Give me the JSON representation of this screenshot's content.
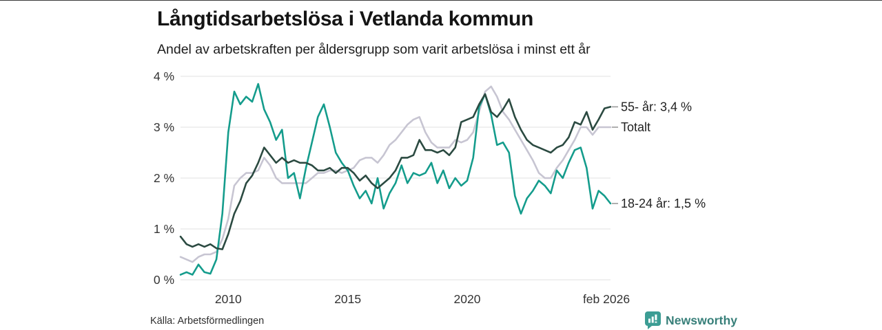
{
  "chart_data": {
    "type": "line",
    "title": "Långtidsarbetslösa i Vetlanda kommun",
    "subtitle": "Andel av arbetskraften per åldersgrupp som varit arbetslösa i minst ett år",
    "xlabel": "",
    "ylabel": "",
    "grid": "horizontal",
    "legend_position": "right-end-labels",
    "x_start_year": 2008.0,
    "x_end_year": 2026.0,
    "x_step_years": 0.25,
    "ylim": [
      0,
      4
    ],
    "y_ticks": [
      {
        "label": "0 %",
        "value": 0
      },
      {
        "label": "1 %",
        "value": 1
      },
      {
        "label": "2 %",
        "value": 2
      },
      {
        "label": "3 %",
        "value": 3
      },
      {
        "label": "4 %",
        "value": 4
      }
    ],
    "x_ticks": [
      {
        "label": "2010",
        "year": 2010
      },
      {
        "label": "2015",
        "year": 2015
      },
      {
        "label": "2020",
        "year": 2020
      },
      {
        "label": "feb 2026",
        "year": 2026.08
      }
    ],
    "series": [
      {
        "name": "Totalt",
        "end_label": "Totalt",
        "end_value": 3.0,
        "color": "#c7c5d2",
        "values": [
          0.45,
          0.4,
          0.35,
          0.45,
          0.5,
          0.5,
          0.55,
          0.8,
          1.2,
          1.85,
          2.0,
          2.1,
          2.1,
          2.15,
          2.4,
          2.25,
          2.0,
          1.9,
          1.9,
          1.9,
          1.9,
          1.9,
          2.0,
          2.1,
          2.1,
          2.15,
          2.15,
          2.1,
          2.15,
          2.2,
          2.35,
          2.4,
          2.4,
          2.3,
          2.45,
          2.65,
          2.75,
          2.9,
          3.05,
          3.15,
          3.2,
          2.9,
          2.7,
          2.6,
          2.6,
          2.6,
          2.75,
          2.7,
          2.75,
          2.9,
          3.3,
          3.7,
          3.8,
          3.6,
          3.3,
          3.15,
          2.95,
          2.75,
          2.55,
          2.35,
          2.1,
          2.0,
          2.0,
          2.2,
          2.35,
          2.55,
          2.75,
          3.0,
          3.0,
          2.85,
          3.0,
          3.0,
          3.0
        ]
      },
      {
        "name": "18-24 år",
        "end_label": "18-24 år: 1,5 %",
        "end_value": 1.5,
        "color": "#149c8c",
        "values": [
          0.1,
          0.15,
          0.1,
          0.3,
          0.15,
          0.12,
          0.4,
          1.3,
          2.9,
          3.7,
          3.45,
          3.6,
          3.5,
          3.85,
          3.35,
          3.1,
          2.75,
          2.95,
          2.0,
          2.1,
          1.6,
          2.2,
          2.7,
          3.2,
          3.45,
          3.0,
          2.5,
          2.3,
          2.15,
          1.85,
          1.6,
          1.75,
          1.5,
          2.0,
          1.4,
          1.7,
          1.9,
          2.25,
          1.9,
          2.1,
          2.05,
          2.1,
          2.3,
          1.9,
          2.15,
          1.8,
          2.0,
          1.85,
          1.95,
          2.4,
          3.4,
          3.65,
          3.25,
          2.65,
          2.7,
          2.5,
          1.65,
          1.3,
          1.6,
          1.75,
          1.95,
          1.85,
          1.7,
          2.15,
          2.0,
          2.3,
          2.55,
          2.6,
          2.2,
          1.4,
          1.75,
          1.65,
          1.5
        ]
      },
      {
        "name": "55- år",
        "end_label": "55- år: 3,4 %",
        "end_value": 3.4,
        "color": "#2b4a41",
        "values": [
          0.85,
          0.7,
          0.65,
          0.7,
          0.65,
          0.7,
          0.62,
          0.6,
          0.9,
          1.3,
          1.55,
          1.9,
          2.05,
          2.3,
          2.6,
          2.45,
          2.3,
          2.4,
          2.3,
          2.35,
          2.3,
          2.3,
          2.25,
          2.15,
          2.15,
          2.2,
          2.1,
          2.2,
          2.2,
          2.1,
          1.95,
          2.05,
          1.9,
          1.8,
          1.9,
          2.0,
          2.15,
          2.4,
          2.4,
          2.45,
          2.75,
          2.55,
          2.55,
          2.5,
          2.55,
          2.45,
          2.6,
          3.1,
          3.15,
          3.2,
          3.45,
          3.65,
          3.3,
          3.2,
          3.35,
          3.55,
          3.2,
          2.95,
          2.75,
          2.65,
          2.6,
          2.55,
          2.5,
          2.6,
          2.65,
          2.8,
          3.1,
          3.05,
          3.3,
          2.95,
          3.15,
          3.37,
          3.4
        ]
      }
    ]
  },
  "colors": {
    "grid": "#e2e2e2",
    "axis_text": "#333333",
    "end_label_text": "#222222",
    "end_tick": "#999999",
    "brand_teal": "#3c9d94",
    "brand_text": "#377f79"
  },
  "footer": {
    "source": "Källa: Arbetsförmedlingen",
    "brand": "Newsworthy",
    "brand_icon": "newsworthy-speech-bubble-bar-chart-icon"
  }
}
